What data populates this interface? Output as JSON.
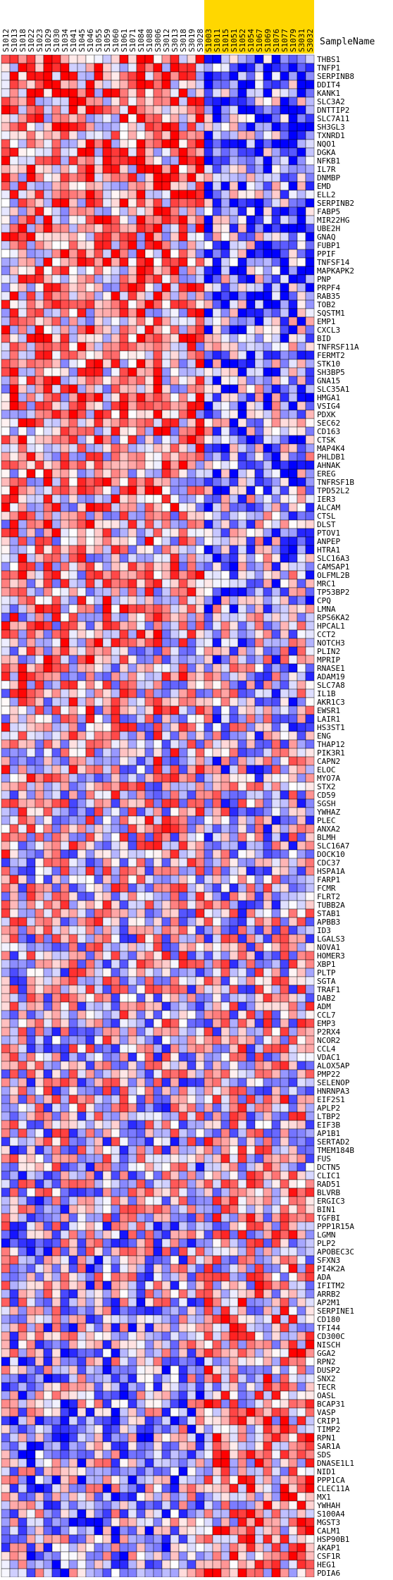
{
  "chart_data": {
    "type": "heatmap",
    "title": "",
    "xlabel": "",
    "ylabel": "",
    "column_header": "SampleName",
    "samples": [
      "S1012",
      "S1013",
      "S1018",
      "S1022",
      "S1023",
      "S1029",
      "S1030",
      "S1034",
      "S1041",
      "S1045",
      "S1046",
      "S1055",
      "S1059",
      "S1060",
      "S1061",
      "S1071",
      "S1084",
      "S1088",
      "S3006",
      "S3012",
      "S3013",
      "S3018",
      "S3019",
      "S3028",
      "S1003",
      "S1011",
      "S1015",
      "S1051",
      "S1052",
      "S1054",
      "S1067",
      "S1069",
      "S1076",
      "S1077",
      "S1079",
      "S3031",
      "S3032"
    ],
    "highlighted_samples": [
      "S1003",
      "S1011",
      "S1015",
      "S1051",
      "S1052",
      "S1054",
      "S1067",
      "S1069",
      "S1076",
      "S1077",
      "S1079",
      "S3031",
      "S3032"
    ],
    "genes": [
      "THBS1",
      "TNFP1",
      "SERPINB8",
      "DDIT4",
      "KANK1",
      "SLC3A2",
      "DNTTIP2",
      "SLC7A11",
      "SH3GL3",
      "TXNRD1",
      "NQO1",
      "DGKA",
      "NFKB1",
      "IL7R",
      "DNMBP",
      "EMD",
      "ELL2",
      "SERPINB2",
      "FABP5",
      "MIR22HG",
      "UBE2H",
      "GNAQ",
      "FUBP1",
      "PPIF",
      "TNFSF14",
      "MAPKAPK2",
      "PNP",
      "PRPF4",
      "RAB35",
      "TOB2",
      "SQSTM1",
      "EMP1",
      "CXCL3",
      "BID",
      "TNFRSF11A",
      "FERMT2",
      "STK10",
      "SH3BP5",
      "GNA15",
      "SLC35A1",
      "HMGA1",
      "VSIG4",
      "PDXK",
      "SEC62",
      "CD163",
      "CTSK",
      "MAP4K4",
      "PHLDB1",
      "AHNAK",
      "EREG",
      "TNFRSF1B",
      "TPD52L2",
      "IER3",
      "ALCAM",
      "CTSL",
      "DLST",
      "PTOV1",
      "ANPEP",
      "HTRA1",
      "SLC16A3",
      "CAMSAP1",
      "OLFML2B",
      "MRC1",
      "TP53BP2",
      "CPQ",
      "LMNA",
      "RPS6KA2",
      "HPCAL1",
      "CCT2",
      "NOTCH3",
      "PLIN2",
      "MPRIP",
      "RNASE1",
      "ADAM19",
      "SLC7A8",
      "IL1B",
      "AKR1C3",
      "EWSR1",
      "LAIR1",
      "HS3ST1",
      "ENG",
      "THAP12",
      "PIK3R1",
      "CAPN2",
      "ELOC",
      "MYO7A",
      "STX2",
      "CD59",
      "SGSH",
      "YWHAZ",
      "PLEC",
      "ANXA2",
      "BLMH",
      "SLC16A7",
      "DOCK10",
      "CDC37",
      "HSPA1A",
      "FARP1",
      "FCMR",
      "FLRT2",
      "TUBB2A",
      "STAB1",
      "APBB3",
      "ID3",
      "LGALS3",
      "NOVA1",
      "HOMER3",
      "XBP1",
      "PLTP",
      "SGTA",
      "TRAF1",
      "DAB2",
      "ADM",
      "CCL7",
      "EMP3",
      "P2RX4",
      "NCOR2",
      "CCL4",
      "VDAC1",
      "ALOX5AP",
      "PMP22",
      "SELENOP",
      "HNRNPA3",
      "EIF2S1",
      "APLP2",
      "LTBP2",
      "EIF3B",
      "AP1B1",
      "SERTAD2",
      "TMEM184B",
      "FUS",
      "DCTN5",
      "CLIC1",
      "RAD51",
      "BLVRB",
      "ERGIC3",
      "BIN1",
      "TGFBI",
      "PPP1R15A",
      "LGMN",
      "PLP2",
      "APOBEC3C",
      "SFXN3",
      "PI4K2A",
      "ADA",
      "IFITM2",
      "ARRB2",
      "AP2M1",
      "SERPINE1",
      "CD180",
      "TFI44",
      "CD300C",
      "NISCH",
      "GGA2",
      "RPN2",
      "DUSP2",
      "SNX2",
      "TECR",
      "OASL",
      "BCAP31",
      "VASP",
      "CRIP1",
      "TIMP2",
      "RPN1",
      "SAR1A",
      "SDS",
      "DNASE1L1",
      "NID1",
      "PPP1CA",
      "CLEC11A",
      "MX1",
      "YWHAH",
      "S100A4",
      "MGST3",
      "CALM1",
      "HSP90B1",
      "AKAP1",
      "CSF1R",
      "HEG1",
      "PDIA6"
    ]
  }
}
